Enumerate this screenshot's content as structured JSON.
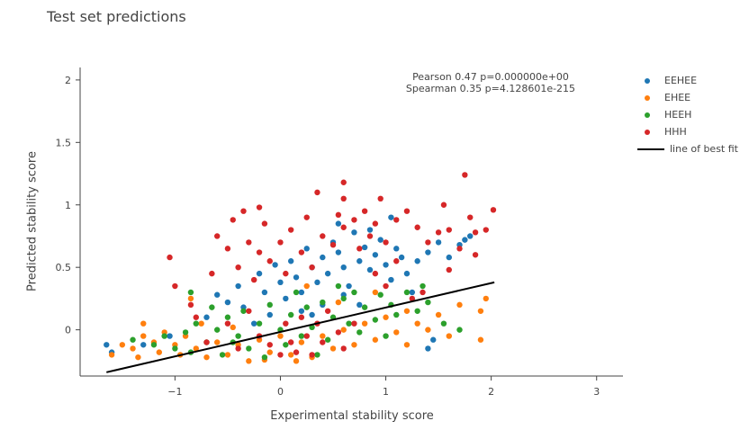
{
  "chart_data": {
    "type": "scatter",
    "title": "Test set predictions",
    "xlabel": "Experimental stability score",
    "ylabel": "Predicted stability score",
    "xlim": [
      -1.9,
      3.25
    ],
    "ylim": [
      -0.37,
      2.1
    ],
    "x_ticks": [
      -1,
      0,
      1,
      2,
      3
    ],
    "y_ticks": [
      0,
      0.5,
      1,
      1.5,
      2
    ],
    "x_tick_labels": [
      "−1",
      "0",
      "1",
      "2",
      "3"
    ],
    "y_tick_labels": [
      "0",
      "0.5",
      "1",
      "1.5",
      "2"
    ],
    "grid": false,
    "legend_position": "top-right",
    "annotation": {
      "pearson": "Pearson 0.47 p=0.000000e+00",
      "spearman": "Spearman 0.35 p=4.128601e-215"
    },
    "series": [
      {
        "name": "EEHEE",
        "color": "#1f77b4",
        "points": [
          [
            -1.65,
            -0.12
          ],
          [
            -1.6,
            -0.18
          ],
          [
            -1.3,
            -0.12
          ],
          [
            -1.05,
            -0.05
          ],
          [
            -0.7,
            0.1
          ],
          [
            -0.5,
            0.22
          ],
          [
            -0.4,
            0.35
          ],
          [
            -0.35,
            0.18
          ],
          [
            -0.2,
            0.45
          ],
          [
            -0.15,
            0.3
          ],
          [
            -0.1,
            0.12
          ],
          [
            -0.05,
            0.52
          ],
          [
            0.0,
            0.38
          ],
          [
            0.05,
            0.25
          ],
          [
            0.1,
            0.55
          ],
          [
            0.15,
            0.42
          ],
          [
            0.2,
            0.3
          ],
          [
            0.25,
            0.65
          ],
          [
            0.3,
            0.5
          ],
          [
            0.35,
            0.38
          ],
          [
            0.4,
            0.58
          ],
          [
            0.45,
            0.45
          ],
          [
            0.5,
            0.7
          ],
          [
            0.55,
            0.62
          ],
          [
            0.6,
            0.5
          ],
          [
            0.65,
            0.35
          ],
          [
            0.7,
            0.78
          ],
          [
            0.75,
            0.55
          ],
          [
            0.8,
            0.66
          ],
          [
            0.85,
            0.48
          ],
          [
            0.9,
            0.6
          ],
          [
            0.95,
            0.72
          ],
          [
            1.0,
            0.52
          ],
          [
            1.05,
            0.4
          ],
          [
            1.1,
            0.65
          ],
          [
            1.15,
            0.58
          ],
          [
            1.2,
            0.45
          ],
          [
            1.3,
            0.55
          ],
          [
            1.4,
            0.62
          ],
          [
            1.5,
            0.7
          ],
          [
            1.6,
            0.58
          ],
          [
            1.7,
            0.68
          ],
          [
            1.75,
            0.72
          ],
          [
            1.8,
            0.75
          ],
          [
            1.05,
            0.9
          ],
          [
            0.55,
            0.85
          ],
          [
            0.2,
            0.15
          ],
          [
            -0.25,
            0.05
          ],
          [
            0.75,
            0.2
          ],
          [
            1.4,
            -0.15
          ],
          [
            1.45,
            -0.08
          ],
          [
            0.3,
            0.12
          ],
          [
            0.6,
            0.28
          ],
          [
            -0.6,
            0.28
          ],
          [
            0.85,
            0.8
          ],
          [
            0.4,
            0.2
          ],
          [
            1.25,
            0.3
          ]
        ]
      },
      {
        "name": "EHEE",
        "color": "#ff7f0e",
        "points": [
          [
            -1.6,
            -0.2
          ],
          [
            -1.5,
            -0.12
          ],
          [
            -1.4,
            -0.15
          ],
          [
            -1.35,
            -0.22
          ],
          [
            -1.3,
            -0.05
          ],
          [
            -1.2,
            -0.1
          ],
          [
            -1.15,
            -0.18
          ],
          [
            -1.1,
            -0.02
          ],
          [
            -1.0,
            -0.12
          ],
          [
            -0.95,
            -0.2
          ],
          [
            -0.9,
            -0.05
          ],
          [
            -0.8,
            -0.15
          ],
          [
            -0.75,
            0.05
          ],
          [
            -0.7,
            -0.22
          ],
          [
            -0.6,
            -0.1
          ],
          [
            -0.5,
            -0.2
          ],
          [
            -0.45,
            0.02
          ],
          [
            -0.4,
            -0.12
          ],
          [
            -0.3,
            -0.25
          ],
          [
            -0.2,
            -0.08
          ],
          [
            -0.1,
            -0.18
          ],
          [
            0.0,
            -0.05
          ],
          [
            0.1,
            -0.2
          ],
          [
            0.2,
            -0.1
          ],
          [
            0.3,
            -0.22
          ],
          [
            0.4,
            -0.05
          ],
          [
            0.5,
            -0.15
          ],
          [
            0.6,
            0.0
          ],
          [
            0.7,
            -0.12
          ],
          [
            0.8,
            0.05
          ],
          [
            0.9,
            -0.08
          ],
          [
            1.0,
            0.1
          ],
          [
            1.1,
            -0.02
          ],
          [
            1.2,
            0.15
          ],
          [
            1.3,
            0.05
          ],
          [
            1.4,
            0.0
          ],
          [
            1.5,
            0.12
          ],
          [
            1.6,
            -0.05
          ],
          [
            1.7,
            0.2
          ],
          [
            1.9,
            0.15
          ],
          [
            1.95,
            0.25
          ],
          [
            1.9,
            -0.08
          ],
          [
            -1.3,
            0.05
          ],
          [
            -0.85,
            0.25
          ],
          [
            0.25,
            0.35
          ],
          [
            0.9,
            0.3
          ],
          [
            0.15,
            -0.25
          ],
          [
            -0.15,
            -0.24
          ],
          [
            0.55,
            0.22
          ],
          [
            1.2,
            -0.12
          ]
        ]
      },
      {
        "name": "HEEH",
        "color": "#2ca02c",
        "points": [
          [
            -1.4,
            -0.08
          ],
          [
            -1.2,
            -0.12
          ],
          [
            -1.1,
            -0.05
          ],
          [
            -1.0,
            -0.15
          ],
          [
            -0.9,
            -0.02
          ],
          [
            -0.85,
            -0.18
          ],
          [
            -0.8,
            0.05
          ],
          [
            -0.7,
            -0.1
          ],
          [
            -0.6,
            0.0
          ],
          [
            -0.55,
            -0.2
          ],
          [
            -0.5,
            0.1
          ],
          [
            -0.4,
            -0.05
          ],
          [
            -0.35,
            0.15
          ],
          [
            -0.3,
            -0.15
          ],
          [
            -0.2,
            0.05
          ],
          [
            -0.1,
            0.2
          ],
          [
            0.0,
            0.0
          ],
          [
            0.05,
            -0.12
          ],
          [
            0.1,
            0.12
          ],
          [
            0.2,
            -0.05
          ],
          [
            0.25,
            0.18
          ],
          [
            0.3,
            0.02
          ],
          [
            0.4,
            0.22
          ],
          [
            0.45,
            -0.08
          ],
          [
            0.5,
            0.1
          ],
          [
            0.6,
            0.25
          ],
          [
            0.65,
            0.05
          ],
          [
            0.7,
            0.3
          ],
          [
            0.75,
            -0.02
          ],
          [
            0.8,
            0.18
          ],
          [
            0.9,
            0.08
          ],
          [
            0.95,
            0.28
          ],
          [
            1.0,
            -0.05
          ],
          [
            1.05,
            0.2
          ],
          [
            1.1,
            0.12
          ],
          [
            1.2,
            0.3
          ],
          [
            1.3,
            0.15
          ],
          [
            1.4,
            0.22
          ],
          [
            1.55,
            0.05
          ],
          [
            1.7,
            0.0
          ],
          [
            -0.85,
            0.3
          ],
          [
            -0.15,
            -0.22
          ],
          [
            0.35,
            -0.2
          ],
          [
            0.55,
            0.35
          ],
          [
            -0.65,
            0.18
          ],
          [
            0.15,
            0.3
          ],
          [
            -0.45,
            -0.1
          ],
          [
            1.35,
            0.35
          ]
        ]
      },
      {
        "name": "HHH",
        "color": "#d62728",
        "points": [
          [
            -1.05,
            0.58
          ],
          [
            -1.0,
            0.35
          ],
          [
            -0.85,
            0.2
          ],
          [
            -0.65,
            0.45
          ],
          [
            -0.6,
            0.75
          ],
          [
            -0.5,
            0.65
          ],
          [
            -0.45,
            0.88
          ],
          [
            -0.4,
            0.5
          ],
          [
            -0.35,
            0.95
          ],
          [
            -0.3,
            0.7
          ],
          [
            -0.25,
            0.4
          ],
          [
            -0.2,
            0.62
          ],
          [
            -0.15,
            0.85
          ],
          [
            -0.2,
            0.98
          ],
          [
            -0.1,
            0.55
          ],
          [
            0.0,
            0.7
          ],
          [
            0.05,
            0.45
          ],
          [
            0.1,
            0.8
          ],
          [
            0.2,
            0.62
          ],
          [
            0.25,
            0.9
          ],
          [
            0.3,
            0.5
          ],
          [
            0.4,
            0.75
          ],
          [
            0.5,
            0.68
          ],
          [
            0.55,
            0.92
          ],
          [
            0.6,
            0.82
          ],
          [
            0.6,
            1.05
          ],
          [
            0.7,
            0.88
          ],
          [
            0.75,
            0.65
          ],
          [
            0.8,
            0.95
          ],
          [
            0.85,
            0.75
          ],
          [
            0.9,
            0.85
          ],
          [
            0.95,
            1.05
          ],
          [
            1.0,
            0.7
          ],
          [
            1.1,
            0.88
          ],
          [
            1.2,
            0.95
          ],
          [
            1.3,
            0.82
          ],
          [
            1.4,
            0.7
          ],
          [
            1.5,
            0.78
          ],
          [
            1.6,
            0.8
          ],
          [
            1.7,
            0.65
          ],
          [
            1.75,
            1.24
          ],
          [
            1.8,
            0.9
          ],
          [
            1.85,
            0.78
          ],
          [
            1.95,
            0.8
          ],
          [
            2.02,
            0.96
          ],
          [
            1.85,
            0.6
          ],
          [
            1.6,
            0.48
          ],
          [
            -0.3,
            0.15
          ],
          [
            -0.2,
            -0.05
          ],
          [
            -0.1,
            -0.12
          ],
          [
            0.0,
            -0.2
          ],
          [
            0.05,
            0.05
          ],
          [
            0.1,
            -0.1
          ],
          [
            0.15,
            -0.18
          ],
          [
            0.2,
            0.1
          ],
          [
            0.25,
            -0.05
          ],
          [
            0.3,
            -0.2
          ],
          [
            0.35,
            0.05
          ],
          [
            0.4,
            -0.1
          ],
          [
            0.45,
            0.15
          ],
          [
            0.55,
            -0.02
          ],
          [
            0.6,
            -0.15
          ],
          [
            0.7,
            0.05
          ],
          [
            -0.4,
            -0.15
          ],
          [
            -0.5,
            0.05
          ],
          [
            -0.7,
            -0.1
          ],
          [
            -0.8,
            0.1
          ],
          [
            0.9,
            0.45
          ],
          [
            1.0,
            0.35
          ],
          [
            1.1,
            0.55
          ],
          [
            1.25,
            0.25
          ],
          [
            0.35,
            1.1
          ],
          [
            0.6,
            1.18
          ],
          [
            1.55,
            1.0
          ],
          [
            1.35,
            0.3
          ]
        ]
      }
    ],
    "best_fit": {
      "name": "line of best fit",
      "color": "#000000",
      "x": [
        -1.65,
        2.03
      ],
      "y": [
        -0.34,
        0.38
      ]
    }
  }
}
